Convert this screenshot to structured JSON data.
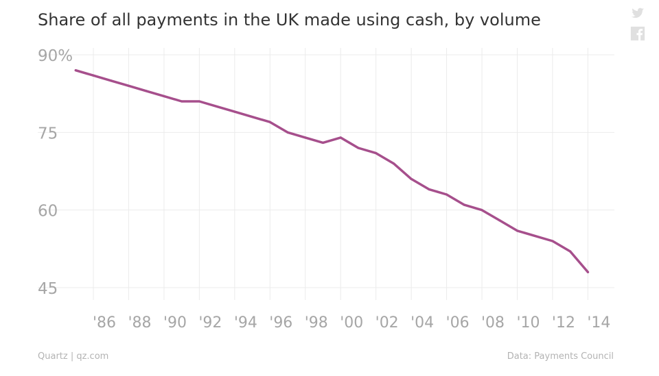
{
  "title": "Share of all payments in the UK made using cash, by volume",
  "footer": {
    "source_left": "Quartz | qz.com",
    "source_right": "Data: Payments Council"
  },
  "icons": [
    "twitter-icon",
    "facebook-icon"
  ],
  "colors": {
    "line": "#a64f8c",
    "grid": "#ebebeb",
    "tick_text": "#a6a6a6",
    "title": "#333333",
    "footer": "#b3b3b3",
    "icon": "#e0e0e0"
  },
  "chart_data": {
    "type": "line",
    "title": "Share of all payments in the UK made using cash, by volume",
    "xlabel": "",
    "ylabel": "",
    "y_ticks": [
      90,
      75,
      60,
      45
    ],
    "y_tick_labels": [
      "90%",
      "75",
      "60",
      "45"
    ],
    "ylim": [
      45,
      90
    ],
    "x_ticks": [
      1986,
      1988,
      1990,
      1992,
      1994,
      1996,
      1998,
      2000,
      2002,
      2004,
      2006,
      2008,
      2010,
      2012,
      2014
    ],
    "x_tick_labels": [
      "'86",
      "'88",
      "'90",
      "'92",
      "'94",
      "'96",
      "'98",
      "'00",
      "'02",
      "'04",
      "'06",
      "'08",
      "'10",
      "'12",
      "'14"
    ],
    "xlim": [
      1984.6,
      2015.5
    ],
    "grid": true,
    "series": [
      {
        "x": [
          1985,
          1986,
          1987,
          1988,
          1989,
          1990,
          1991,
          1992,
          1993,
          1994,
          1995,
          1996,
          1997,
          1998,
          1999,
          2000,
          2001,
          2002,
          2003,
          2004,
          2005,
          2006,
          2007,
          2008,
          2009,
          2010,
          2011,
          2012,
          2013,
          2014
        ],
        "values": [
          87,
          86,
          85,
          84,
          83,
          82,
          81,
          81,
          80,
          79,
          78,
          77,
          75,
          74,
          73,
          74,
          72,
          71,
          69,
          66,
          64,
          63,
          61,
          60,
          58,
          56,
          55,
          54,
          52,
          48
        ]
      }
    ]
  }
}
